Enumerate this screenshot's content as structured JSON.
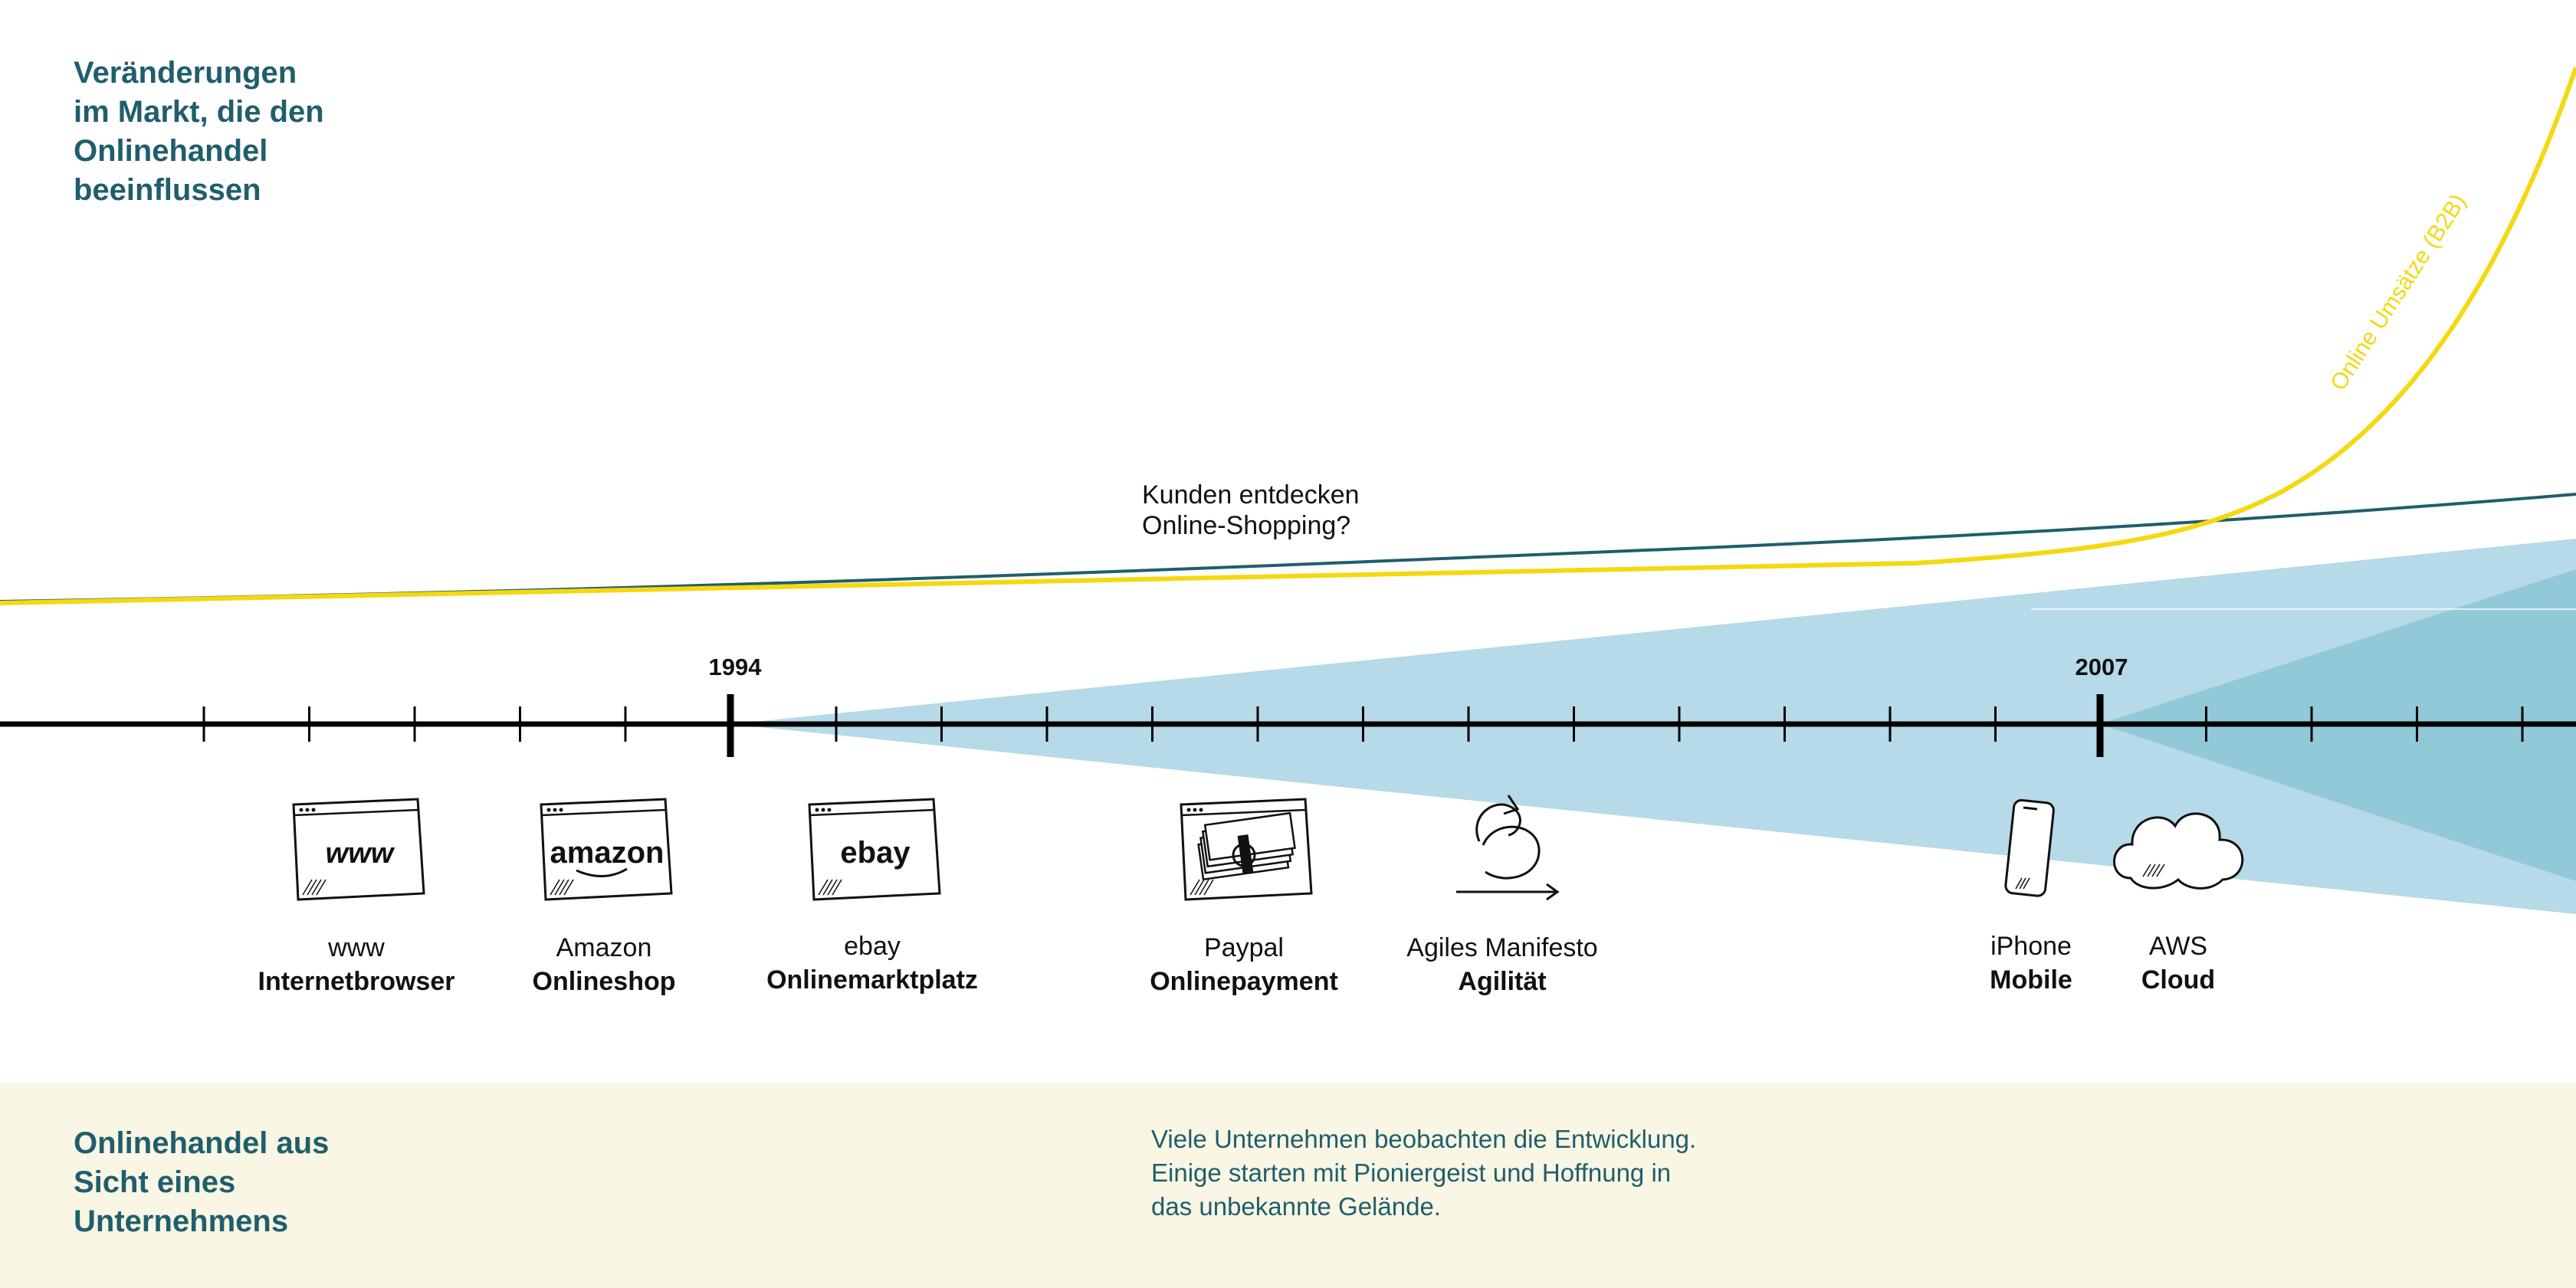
{
  "title": "Veränderungen\nim Markt, die den\nOnlinehandel\nbeeinflussen",
  "annotation": "Kunden entdecken\nOnline-Shopping?",
  "curve_label": "Online Umsätze (B2B)",
  "timeline": {
    "year_start": "1994",
    "year_end": "2007"
  },
  "milestones": [
    {
      "top": "www",
      "bottom": "Internetbrowser",
      "icon": "browser-www-icon",
      "icon_text": "www"
    },
    {
      "top": "Amazon",
      "bottom": "Onlineshop",
      "icon": "browser-amazon-icon",
      "icon_text": "amazon"
    },
    {
      "top": "ebay",
      "bottom": "Onlinemarktplatz",
      "icon": "browser-ebay-icon",
      "icon_text": "ebay"
    },
    {
      "top": "Paypal",
      "bottom": "Onlinepayment",
      "icon": "browser-money-icon"
    },
    {
      "top": "Agiles Manifesto",
      "bottom": "Agilität",
      "icon": "agile-loop-icon"
    },
    {
      "top": "iPhone",
      "bottom": "Mobile",
      "icon": "smartphone-icon"
    },
    {
      "top": "AWS",
      "bottom": "Cloud",
      "icon": "cloud-icon"
    }
  ],
  "footer": {
    "title": "Onlinehandel aus\nSicht eines\nUnternehmens",
    "text": "Viele Unternehmen beobachten die Entwicklung.\nEinige starten mit Pioniergeist und Hoffnung in\ndas unbekannte Gelände."
  },
  "colors": {
    "accent": "#1f5e6c",
    "curve_yellow": "#f5d80f",
    "wedge_blue": "#a9d4e3",
    "wedge_blue_dark": "#8cc6d6",
    "footer_bg": "#f9f6e4"
  }
}
